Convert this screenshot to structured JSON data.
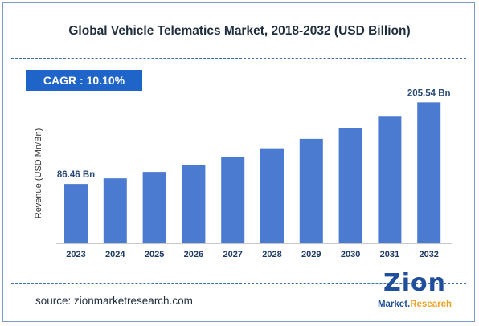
{
  "header": {
    "title": "Global Vehicle Telematics Market, 2018-2032 (USD Billion)",
    "cagr": "CAGR : 10.10%"
  },
  "chart_data": {
    "type": "bar",
    "categories": [
      "2023",
      "2024",
      "2025",
      "2026",
      "2027",
      "2028",
      "2029",
      "2030",
      "2031",
      "2032"
    ],
    "values": [
      86.46,
      94.6,
      104.0,
      114.5,
      126.0,
      138.5,
      152.3,
      167.5,
      184.6,
      205.54
    ],
    "data_labels": {
      "first": "86.46 Bn",
      "last": "205.54 Bn"
    },
    "ylabel": "Revenue (USD Mn/Bn)",
    "ylim": [
      0,
      220
    ],
    "grid": false,
    "bar_color": "#4a7bd0"
  },
  "footer": {
    "source": "source: zionmarketresearch.com",
    "logo_word": "Zion",
    "logo_sub_a": "Market.",
    "logo_sub_b": "Research"
  }
}
